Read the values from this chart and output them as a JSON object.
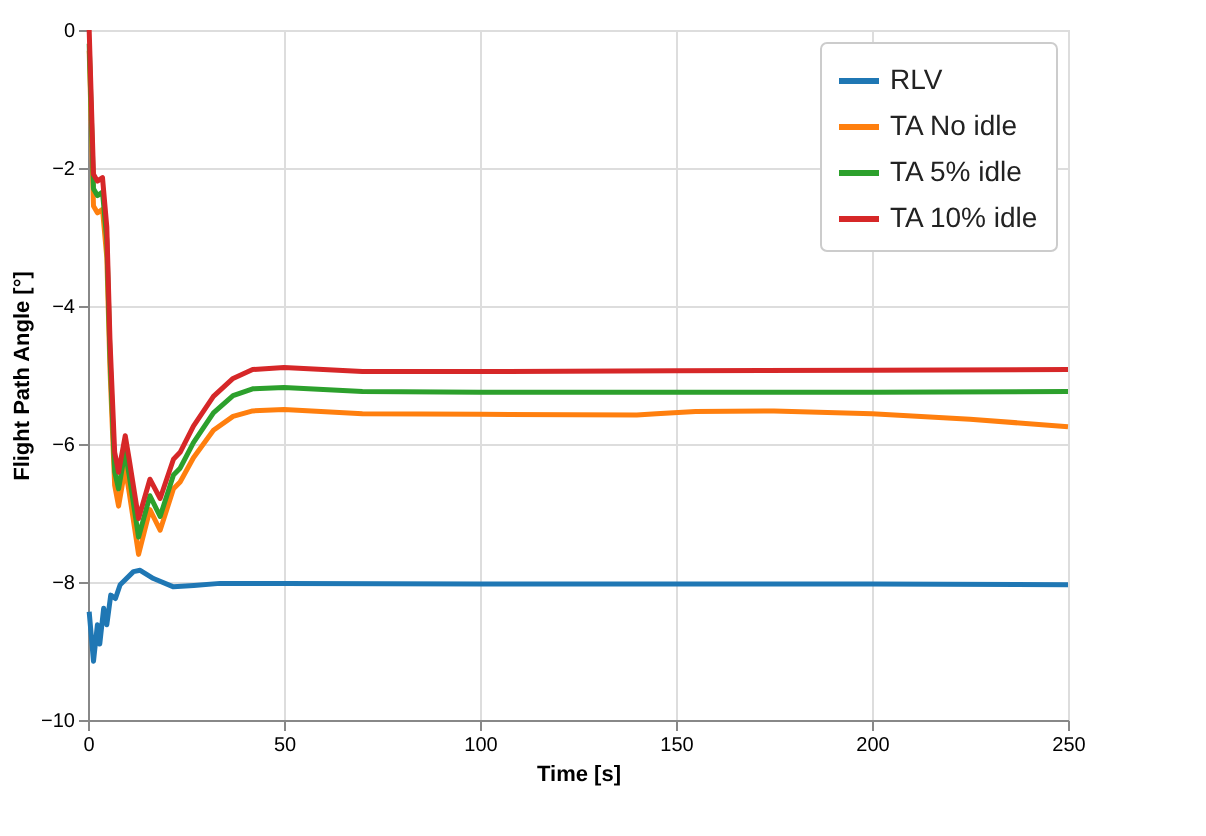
{
  "chart_data": {
    "type": "line",
    "xlabel": "Time [s]",
    "ylabel": "Flight Path Angle [°]",
    "xlim": [
      0,
      250
    ],
    "ylim": [
      -10,
      0
    ],
    "xticks": [
      0,
      50,
      100,
      150,
      200,
      250
    ],
    "yticks": [
      -10,
      -8,
      -6,
      -4,
      -2,
      0
    ],
    "grid": true,
    "legend": "top right",
    "line_style": "solid",
    "marker": "none",
    "series": [
      {
        "name": "RLV",
        "color": "#1f77b4",
        "x": [
          0.3,
          1.4,
          2.4,
          3,
          4,
          4.8,
          5.8,
          7,
          8.2,
          11.6,
          13.3,
          16.7,
          21.8,
          27,
          33.7,
          50,
          100,
          150,
          200,
          250
        ],
        "values": [
          -8.43,
          -9.15,
          -8.62,
          -8.9,
          -8.38,
          -8.62,
          -8.19,
          -8.24,
          -8.04,
          -7.85,
          -7.83,
          -7.95,
          -8.07,
          -8.05,
          -8.02,
          -8.02,
          -8.03,
          -8.03,
          -8.03,
          -8.04
        ]
      },
      {
        "name": "TA No idle",
        "color": "#ff7f0e",
        "x": [
          0.3,
          1.4,
          2.4,
          3.7,
          4.8,
          5.6,
          6.8,
          7.8,
          9.5,
          10.5,
          12.9,
          15.8,
          18.4,
          21.8,
          23.5,
          26.9,
          32,
          37,
          42,
          50,
          70,
          100,
          140,
          145,
          155,
          175,
          200,
          225,
          250
        ],
        "values": [
          -0.3,
          -2.55,
          -2.65,
          -2.6,
          -3.3,
          -4.9,
          -6.6,
          -6.9,
          -6.35,
          -6.7,
          -7.6,
          -6.95,
          -7.25,
          -6.65,
          -6.55,
          -6.2,
          -5.8,
          -5.6,
          -5.52,
          -5.5,
          -5.56,
          -5.57,
          -5.58,
          -5.56,
          -5.53,
          -5.52,
          -5.56,
          -5.64,
          -5.75
        ]
      },
      {
        "name": "TA 5% idle",
        "color": "#2ca02c",
        "x": [
          0.3,
          1.4,
          2.4,
          3.7,
          4.8,
          5.6,
          6.8,
          7.8,
          9.5,
          10.5,
          12.9,
          15.8,
          18.4,
          21.8,
          23.5,
          26.9,
          32,
          37,
          42,
          50,
          70,
          100,
          150,
          200,
          250
        ],
        "values": [
          -0.2,
          -2.3,
          -2.4,
          -2.35,
          -3.05,
          -4.7,
          -6.4,
          -6.65,
          -6.1,
          -6.45,
          -7.35,
          -6.75,
          -7.05,
          -6.45,
          -6.35,
          -5.98,
          -5.55,
          -5.3,
          -5.2,
          -5.18,
          -5.24,
          -5.25,
          -5.25,
          -5.25,
          -5.24
        ]
      },
      {
        "name": "TA 10% idle",
        "color": "#d62728",
        "x": [
          0.3,
          1.4,
          2.4,
          3.7,
          4.8,
          5.6,
          6.8,
          7.8,
          9.5,
          10.5,
          12.9,
          15.8,
          18.4,
          21.8,
          23.5,
          26.9,
          32,
          37,
          42,
          50,
          70,
          100,
          150,
          200,
          250
        ],
        "values": [
          0,
          -2.09,
          -2.19,
          -2.14,
          -2.86,
          -4.49,
          -6.12,
          -6.41,
          -5.88,
          -6.22,
          -7.08,
          -6.51,
          -6.79,
          -6.22,
          -6.12,
          -5.74,
          -5.31,
          -5.05,
          -4.92,
          -4.89,
          -4.95,
          -4.95,
          -4.94,
          -4.93,
          -4.92
        ]
      }
    ]
  }
}
